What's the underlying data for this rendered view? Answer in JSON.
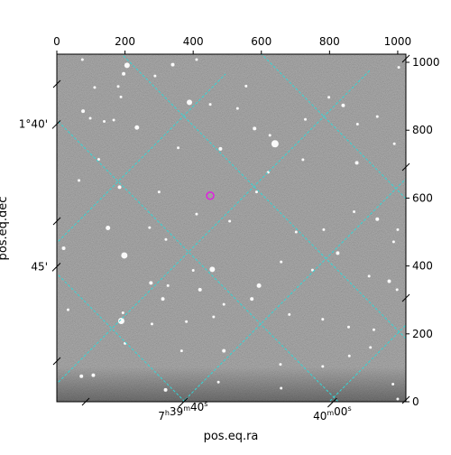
{
  "chart_data": {
    "type": "scatter",
    "title": "",
    "xlabel": "pos.eq.ra",
    "ylabel": "pos.eq.dec",
    "pixel_axes": {
      "x_ticks": [
        "0",
        "200",
        "400",
        "600",
        "800",
        "1000"
      ],
      "y_ticks": [
        "0",
        "200",
        "400",
        "600",
        "800",
        "1000"
      ],
      "xlim": [
        0,
        1024
      ],
      "ylim": [
        0,
        1024
      ]
    },
    "world_ticks": {
      "ra": [
        {
          "label": "7h39m40s",
          "h": "7",
          "m": "39",
          "s": "40",
          "x": 370
        },
        {
          "label": "40m00s",
          "m": "40",
          "s": "00",
          "x": 808
        }
      ],
      "dec": [
        {
          "label": "1°40'",
          "y": 818
        },
        {
          "label": "45'",
          "y": 398
        }
      ]
    },
    "grid": true,
    "grid_color": "#33d6d6",
    "image_colormap": "gray",
    "marker": {
      "x": 450,
      "y": 607,
      "color": "#e020e0",
      "shape": "circle"
    },
    "stars": [
      {
        "x": 206,
        "y": 991,
        "r": 3
      },
      {
        "x": 196,
        "y": 966,
        "r": 2
      },
      {
        "x": 75,
        "y": 1008,
        "r": 1.5
      },
      {
        "x": 410,
        "y": 1008,
        "r": 1.5
      },
      {
        "x": 340,
        "y": 993,
        "r": 2
      },
      {
        "x": 288,
        "y": 960,
        "r": 1.5
      },
      {
        "x": 180,
        "y": 929,
        "r": 1.5
      },
      {
        "x": 111,
        "y": 926,
        "r": 1.5
      },
      {
        "x": 77,
        "y": 856,
        "r": 2
      },
      {
        "x": 98,
        "y": 835,
        "r": 1.5
      },
      {
        "x": 188,
        "y": 898,
        "r": 1.5
      },
      {
        "x": 389,
        "y": 882,
        "r": 3
      },
      {
        "x": 450,
        "y": 876,
        "r": 1.5
      },
      {
        "x": 530,
        "y": 864,
        "r": 1.5
      },
      {
        "x": 580,
        "y": 805,
        "r": 2
      },
      {
        "x": 640,
        "y": 760,
        "r": 4
      },
      {
        "x": 625,
        "y": 785,
        "r": 1.5
      },
      {
        "x": 729,
        "y": 832,
        "r": 1.5
      },
      {
        "x": 798,
        "y": 897,
        "r": 1.5
      },
      {
        "x": 840,
        "y": 873,
        "r": 2
      },
      {
        "x": 940,
        "y": 840,
        "r": 1.5
      },
      {
        "x": 882,
        "y": 818,
        "r": 1.5
      },
      {
        "x": 990,
        "y": 760,
        "r": 1.5
      },
      {
        "x": 880,
        "y": 704,
        "r": 2
      },
      {
        "x": 722,
        "y": 713,
        "r": 1.5
      },
      {
        "x": 620,
        "y": 676,
        "r": 1.5
      },
      {
        "x": 480,
        "y": 745,
        "r": 2
      },
      {
        "x": 356,
        "y": 748,
        "r": 1.5
      },
      {
        "x": 235,
        "y": 808,
        "r": 2.5
      },
      {
        "x": 139,
        "y": 826,
        "r": 1.5
      },
      {
        "x": 167,
        "y": 830,
        "r": 1.5
      },
      {
        "x": 123,
        "y": 714,
        "r": 1.5
      },
      {
        "x": 65,
        "y": 652,
        "r": 1.5
      },
      {
        "x": 184,
        "y": 632,
        "r": 2
      },
      {
        "x": 300,
        "y": 618,
        "r": 1.5
      },
      {
        "x": 150,
        "y": 512,
        "r": 2.5
      },
      {
        "x": 272,
        "y": 513,
        "r": 1.5
      },
      {
        "x": 320,
        "y": 478,
        "r": 1.5
      },
      {
        "x": 410,
        "y": 553,
        "r": 1.5
      },
      {
        "x": 507,
        "y": 532,
        "r": 1.5
      },
      {
        "x": 702,
        "y": 500,
        "r": 1.5
      },
      {
        "x": 783,
        "y": 507,
        "r": 1.5
      },
      {
        "x": 872,
        "y": 560,
        "r": 1.5
      },
      {
        "x": 940,
        "y": 538,
        "r": 2
      },
      {
        "x": 1000,
        "y": 507,
        "r": 1.5
      },
      {
        "x": 988,
        "y": 471,
        "r": 1.5
      },
      {
        "x": 824,
        "y": 438,
        "r": 2
      },
      {
        "x": 658,
        "y": 412,
        "r": 1.5
      },
      {
        "x": 456,
        "y": 390,
        "r": 3
      },
      {
        "x": 400,
        "y": 387,
        "r": 1.5
      },
      {
        "x": 198,
        "y": 431,
        "r": 3.5
      },
      {
        "x": 20,
        "y": 452,
        "r": 2
      },
      {
        "x": 326,
        "y": 342,
        "r": 1.5
      },
      {
        "x": 311,
        "y": 303,
        "r": 2
      },
      {
        "x": 276,
        "y": 350,
        "r": 2
      },
      {
        "x": 420,
        "y": 330,
        "r": 2
      },
      {
        "x": 593,
        "y": 342,
        "r": 2.5
      },
      {
        "x": 572,
        "y": 303,
        "r": 2
      },
      {
        "x": 490,
        "y": 287,
        "r": 1.5
      },
      {
        "x": 460,
        "y": 250,
        "r": 1.5
      },
      {
        "x": 380,
        "y": 236,
        "r": 1.5
      },
      {
        "x": 279,
        "y": 229,
        "r": 1.5
      },
      {
        "x": 189,
        "y": 238,
        "r": 3.5
      },
      {
        "x": 194,
        "y": 262,
        "r": 1.5
      },
      {
        "x": 33,
        "y": 271,
        "r": 1.5
      },
      {
        "x": 682,
        "y": 257,
        "r": 1.5
      },
      {
        "x": 780,
        "y": 243,
        "r": 1.5
      },
      {
        "x": 856,
        "y": 220,
        "r": 1.5
      },
      {
        "x": 998,
        "y": 330,
        "r": 1.5
      },
      {
        "x": 975,
        "y": 355,
        "r": 2
      },
      {
        "x": 916,
        "y": 370,
        "r": 1.5
      },
      {
        "x": 930,
        "y": 212,
        "r": 1.5
      },
      {
        "x": 920,
        "y": 160,
        "r": 1.5
      },
      {
        "x": 858,
        "y": 135,
        "r": 1.5
      },
      {
        "x": 780,
        "y": 104,
        "r": 1.5
      },
      {
        "x": 656,
        "y": 110,
        "r": 1.5
      },
      {
        "x": 490,
        "y": 150,
        "r": 2
      },
      {
        "x": 366,
        "y": 150,
        "r": 1.5
      },
      {
        "x": 200,
        "y": 172,
        "r": 1.5
      },
      {
        "x": 72,
        "y": 75,
        "r": 2
      },
      {
        "x": 107,
        "y": 78,
        "r": 2
      },
      {
        "x": 319,
        "y": 35,
        "r": 2
      },
      {
        "x": 474,
        "y": 58,
        "r": 1.5
      },
      {
        "x": 658,
        "y": 40,
        "r": 1.5
      },
      {
        "x": 1000,
        "y": 8,
        "r": 1.5
      },
      {
        "x": 986,
        "y": 52,
        "r": 1.5
      },
      {
        "x": 750,
        "y": 388,
        "r": 1.5
      },
      {
        "x": 586,
        "y": 618,
        "r": 1.5
      },
      {
        "x": 1003,
        "y": 985,
        "r": 1.5
      },
      {
        "x": 555,
        "y": 930,
        "r": 1.5
      }
    ]
  }
}
